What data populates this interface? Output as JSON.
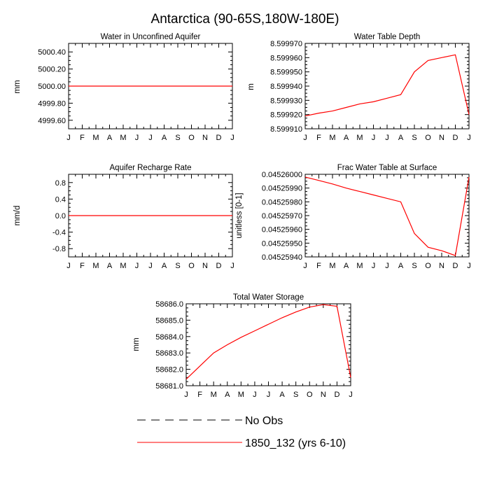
{
  "page": {
    "title": "Antarctica (90-65S,180W-180E)"
  },
  "colors": {
    "line": "#ff0000",
    "axis": "#000000",
    "background": "#ffffff"
  },
  "months": [
    "J",
    "F",
    "M",
    "A",
    "M",
    "J",
    "J",
    "A",
    "S",
    "O",
    "N",
    "D",
    "J"
  ],
  "chart_data": [
    {
      "id": "water-unconfined-aquifer",
      "type": "line",
      "title": "Water in Unconfined Aquifer",
      "xlabel": "",
      "ylabel": "mm",
      "ylim": [
        4999.5,
        5000.5
      ],
      "yticks": [
        "5000.40",
        "5000.20",
        "5000.00",
        "4999.80",
        "4999.60"
      ],
      "ytick_values": [
        5000.4,
        5000.2,
        5000.0,
        4999.8,
        4999.6
      ],
      "series": [
        {
          "name": "1850_132 (yrs 6-10)",
          "values": [
            5000,
            5000,
            5000,
            5000,
            5000,
            5000,
            5000,
            5000,
            5000,
            5000,
            5000,
            5000,
            5000
          ]
        }
      ]
    },
    {
      "id": "water-table-depth",
      "type": "line",
      "title": "Water Table Depth",
      "xlabel": "",
      "ylabel": "m",
      "ylim": [
        8.59991,
        8.59997
      ],
      "yticks": [
        "8.599970",
        "8.599960",
        "8.599950",
        "8.599940",
        "8.599930",
        "8.599920",
        "8.599910"
      ],
      "ytick_values": [
        8.59997,
        8.59996,
        8.59995,
        8.59994,
        8.59993,
        8.59992,
        8.59991
      ],
      "series": [
        {
          "name": "1850_132 (yrs 6-10)",
          "values": [
            8.599919,
            8.599921,
            8.5999225,
            8.599925,
            8.5999275,
            8.599929,
            8.5999315,
            8.599934,
            8.59995,
            8.599958,
            8.59996,
            8.599962,
            8.59992
          ]
        }
      ]
    },
    {
      "id": "aquifer-recharge-rate",
      "type": "line",
      "title": "Aquifer Recharge Rate",
      "xlabel": "",
      "ylabel": "mm/d",
      "ylim": [
        -1.0,
        1.0
      ],
      "yticks": [
        "0.8",
        "0.4",
        "0.0",
        "-0.4",
        "-0.8"
      ],
      "ytick_values": [
        0.8,
        0.4,
        0.0,
        -0.4,
        -0.8
      ],
      "series": [
        {
          "name": "1850_132 (yrs 6-10)",
          "values": [
            0,
            0,
            0,
            0,
            0,
            0,
            0,
            0,
            0,
            0,
            0,
            0,
            0
          ]
        }
      ]
    },
    {
      "id": "frac-water-table-surface",
      "type": "line",
      "title": "Frac Water Table at Surface",
      "xlabel": "",
      "ylabel": "unitless [0-1]",
      "ylim": [
        0.0452594,
        0.04526
      ],
      "yticks": [
        "0.04526000",
        "0.04525990",
        "0.04525980",
        "0.04525970",
        "0.04525960",
        "0.04525950",
        "0.04525940"
      ],
      "ytick_values": [
        0.04526,
        0.0452599,
        0.0452598,
        0.0452597,
        0.0452596,
        0.0452595,
        0.0452594
      ],
      "series": [
        {
          "name": "1850_132 (yrs 6-10)",
          "values": [
            0.04525998,
            0.045259955,
            0.04525993,
            0.0452599,
            0.045259875,
            0.04525985,
            0.045259825,
            0.0452598,
            0.04525957,
            0.04525947,
            0.045259445,
            0.04525941,
            0.04525998
          ]
        }
      ]
    },
    {
      "id": "total-water-storage",
      "type": "line",
      "title": "Total Water Storage",
      "xlabel": "",
      "ylabel": "mm",
      "ylim": [
        58681.0,
        58686.0
      ],
      "yticks": [
        "58686.0",
        "58685.0",
        "58684.0",
        "58683.0",
        "58682.0",
        "58681.0"
      ],
      "ytick_values": [
        58686.0,
        58685.0,
        58684.0,
        58683.0,
        58682.0,
        58681.0
      ],
      "series": [
        {
          "name": "1850_132 (yrs 6-10)",
          "values": [
            58681.4,
            58682.2,
            58683.0,
            58683.5,
            58683.95,
            58684.35,
            58684.75,
            58685.15,
            58685.5,
            58685.8,
            58685.95,
            58685.85,
            58681.5
          ]
        }
      ]
    }
  ],
  "legend": [
    {
      "label": "No Obs",
      "style": "dashed",
      "color": "#000000"
    },
    {
      "label": "1850_132 (yrs 6-10)",
      "style": "solid",
      "color": "#ff0000"
    }
  ]
}
